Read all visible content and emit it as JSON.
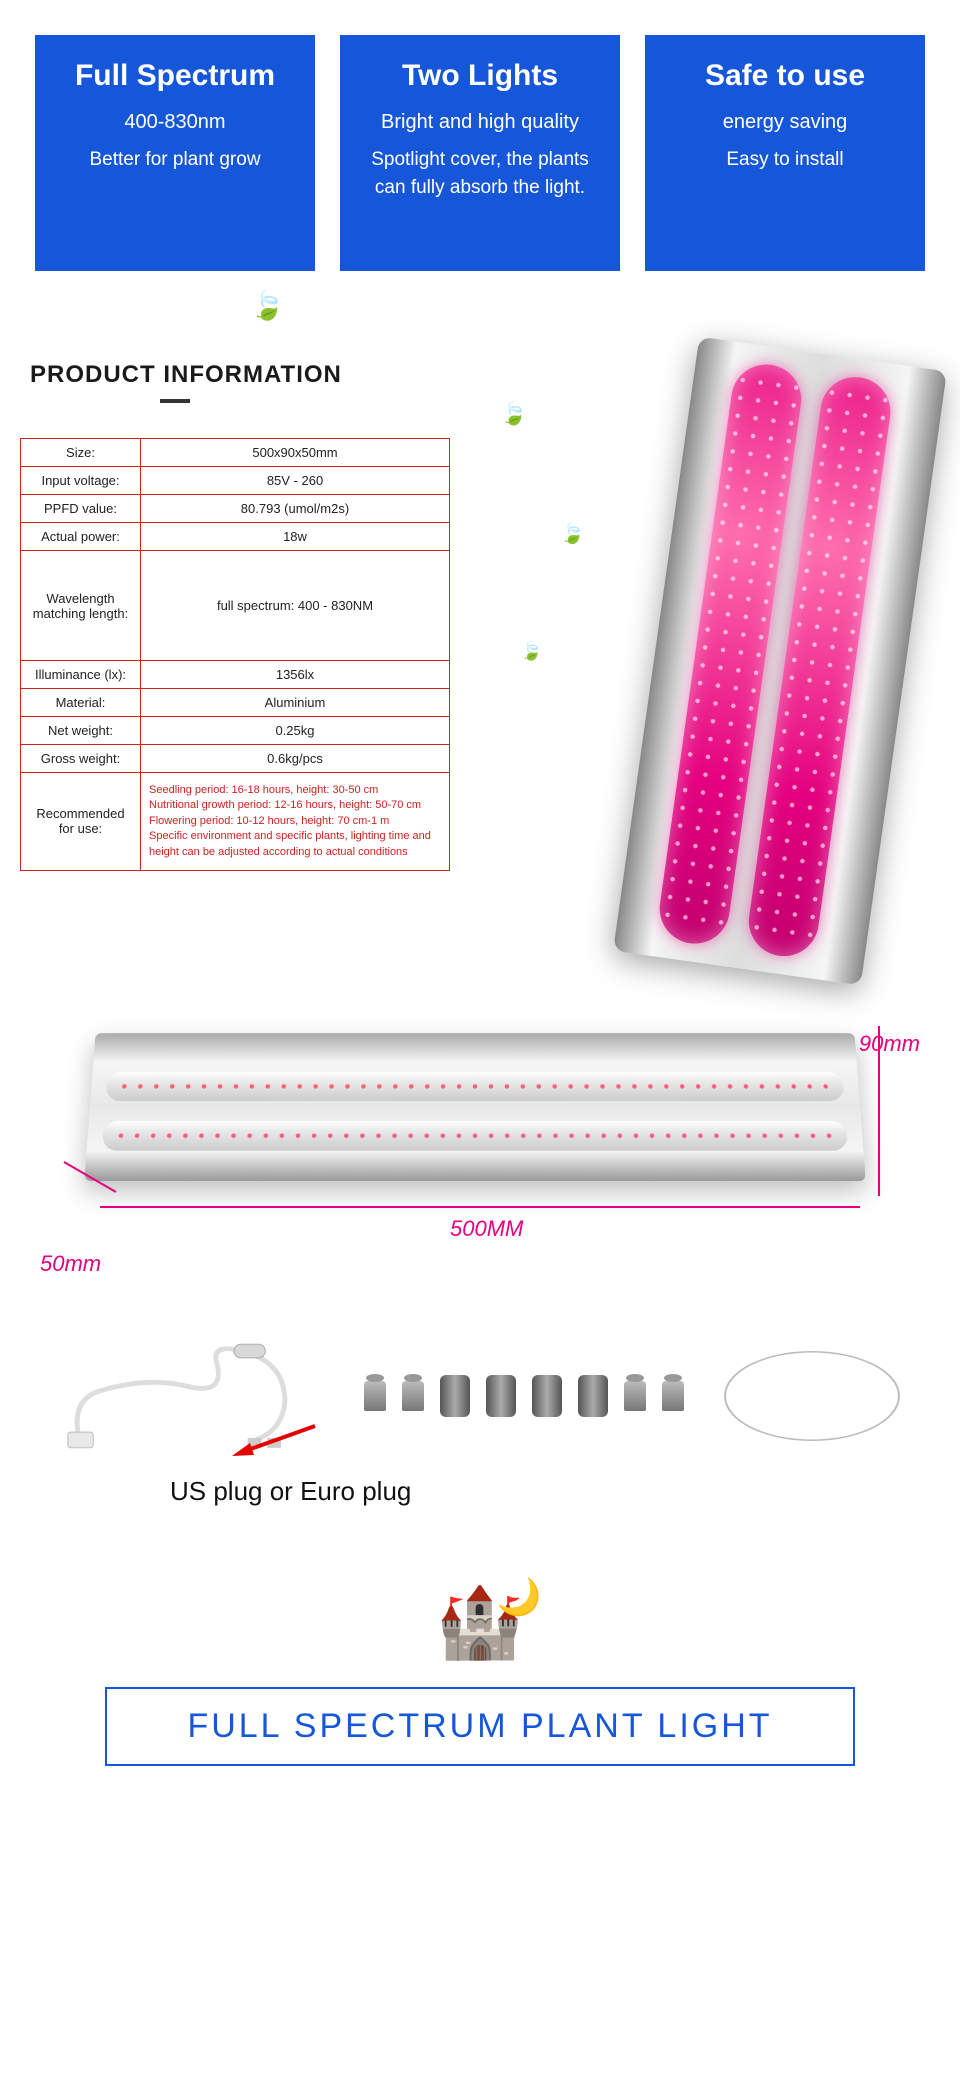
{
  "colors": {
    "card_bg": "#1657d9",
    "card_text": "#ffffff",
    "table_border": "#d02020",
    "table_text": "#222222",
    "rec_text": "#d02020",
    "dim_text": "#e6007e",
    "footer_border": "#1657d9",
    "footer_text": "#1657d9",
    "leaf": "#3a9b2f",
    "tube_pink_a": "#ff6fae",
    "tube_pink_b": "#e4007f",
    "bg": "#ffffff"
  },
  "cards": [
    {
      "title": "Full Spectrum",
      "sub": "400-830nm",
      "body": "Better for plant grow"
    },
    {
      "title": "Two Lights",
      "sub": "Bright and high quality",
      "body": "Spotlight cover, the plants can fully absorb the light."
    },
    {
      "title": "Safe to use",
      "sub": "energy saving",
      "body": "Easy to install"
    }
  ],
  "product_info_heading": "PRODUCT INFORMATION",
  "specs": [
    {
      "k": "Size:",
      "v": "500x90x50mm"
    },
    {
      "k": "Input voltage:",
      "v": "85V - 260"
    },
    {
      "k": "PPFD value:",
      "v": "80.793 (umol/m2s)"
    },
    {
      "k": "Actual power:",
      "v": "18w"
    },
    {
      "k": "Wavelength matching length:",
      "v": "full spectrum: 400 - 830NM",
      "wave": true
    },
    {
      "k": "Illuminance (lx):",
      "v": "1356lx"
    },
    {
      "k": "Material:",
      "v": "Aluminium"
    },
    {
      "k": "Net weight:",
      "v": "0.25kg"
    },
    {
      "k": "Gross weight:",
      "v": "0.6kg/pcs"
    },
    {
      "k": "Recommended for use:",
      "v": "Seedling period: 16-18 hours, height: 30-50 cm\nNutritional growth period: 12-16 hours, height: 50-70 cm\nFlowering period: 10-12 hours, height: 70 cm-1 m\nSpecific environment and specific plants, lighting time and height can be adjusted according to actual conditions",
      "rec": true
    }
  ],
  "dimensions": {
    "length": "500MM",
    "width": "90mm",
    "depth": "50mm"
  },
  "plug_note": "US plug or Euro plug",
  "footer_title": "FULL SPECTRUM PLANT LIGHT"
}
